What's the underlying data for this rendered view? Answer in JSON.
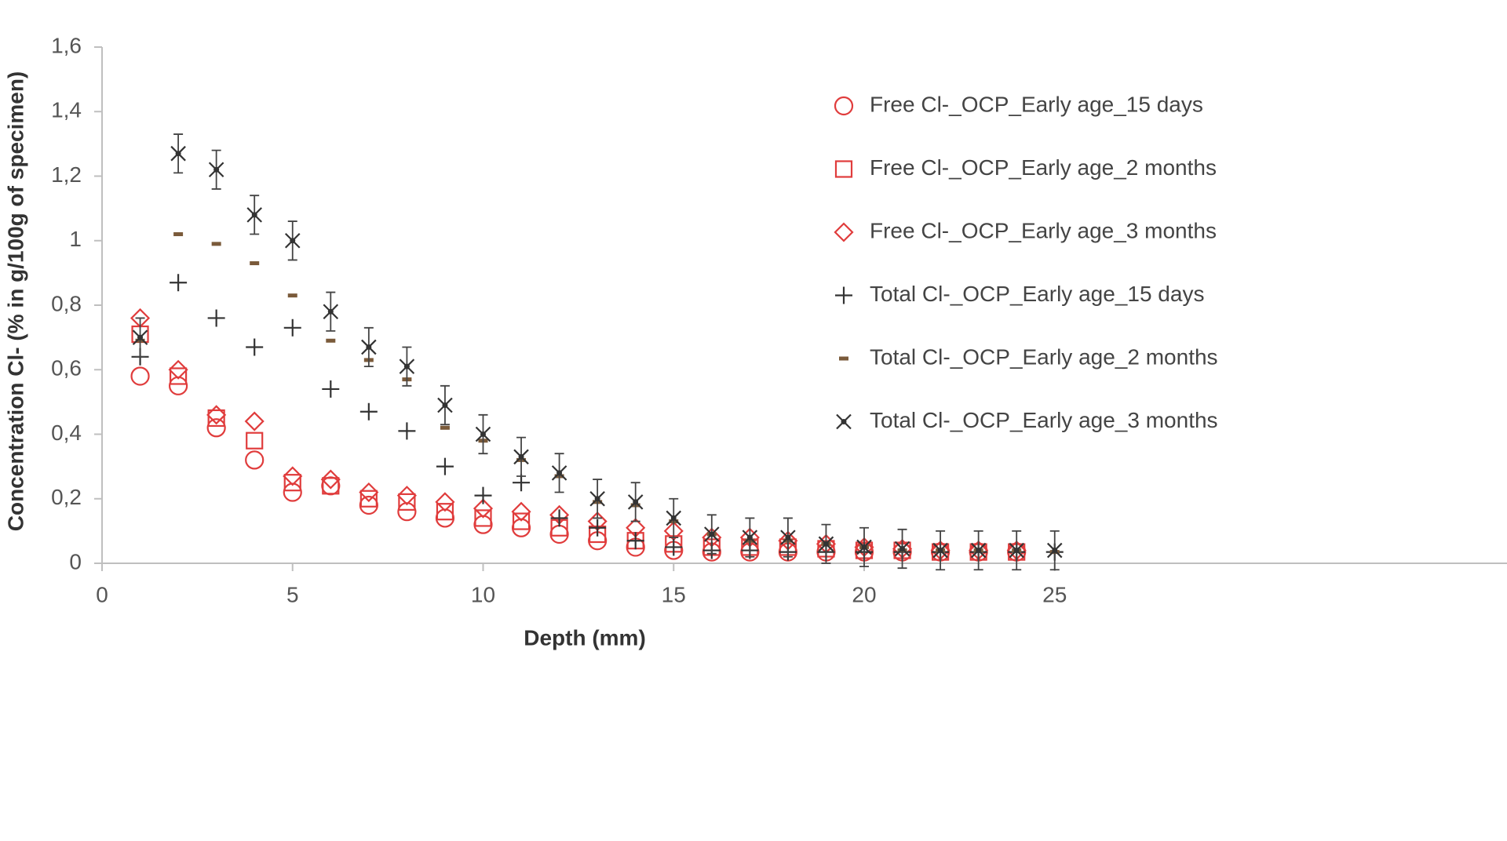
{
  "chart_data": {
    "type": "scatter",
    "title": "",
    "xlabel": "Depth (mm)",
    "ylabel": "Concentration Cl- (% in g/100g of specimen)",
    "xlim": [
      0,
      30
    ],
    "ylim": [
      0,
      1.6
    ],
    "x_ticks": [
      "0",
      "5",
      "10",
      "15",
      "20",
      "25"
    ],
    "y_ticks": [
      "0",
      "0,2",
      "0,4",
      "0,6",
      "0,8",
      "1",
      "1,2",
      "1,4",
      "1,6"
    ],
    "grid": false,
    "legend_position": "right",
    "series": [
      {
        "name": "Free Cl-_OCP_Early age_15 days",
        "marker": "circle",
        "color": "#e03c3c",
        "points": [
          [
            1,
            0.58
          ],
          [
            2,
            0.55
          ],
          [
            3,
            0.42
          ],
          [
            4,
            0.32
          ],
          [
            5,
            0.22
          ],
          [
            6,
            0.24
          ],
          [
            7,
            0.18
          ],
          [
            8,
            0.16
          ],
          [
            9,
            0.14
          ],
          [
            10,
            0.12
          ],
          [
            11,
            0.11
          ],
          [
            12,
            0.09
          ],
          [
            13,
            0.07
          ],
          [
            14,
            0.05
          ],
          [
            15,
            0.04
          ],
          [
            16,
            0.035
          ],
          [
            17,
            0.035
          ],
          [
            18,
            0.035
          ],
          [
            19,
            0.035
          ],
          [
            20,
            0.035
          ],
          [
            21,
            0.035
          ],
          [
            22,
            0.035
          ],
          [
            23,
            0.035
          ],
          [
            24,
            0.035
          ]
        ]
      },
      {
        "name": "Free Cl-_OCP_Early age_2 months",
        "marker": "square",
        "color": "#e03c3c",
        "points": [
          [
            1,
            0.71
          ],
          [
            2,
            0.58
          ],
          [
            3,
            0.45
          ],
          [
            4,
            0.38
          ],
          [
            5,
            0.25
          ],
          [
            6,
            0.24
          ],
          [
            7,
            0.2
          ],
          [
            8,
            0.19
          ],
          [
            9,
            0.16
          ],
          [
            10,
            0.14
          ],
          [
            11,
            0.13
          ],
          [
            12,
            0.11
          ],
          [
            13,
            0.09
          ],
          [
            14,
            0.07
          ],
          [
            15,
            0.06
          ],
          [
            16,
            0.05
          ],
          [
            17,
            0.05
          ],
          [
            18,
            0.05
          ],
          [
            19,
            0.045
          ],
          [
            20,
            0.04
          ],
          [
            21,
            0.04
          ],
          [
            22,
            0.035
          ],
          [
            23,
            0.035
          ],
          [
            24,
            0.035
          ]
        ]
      },
      {
        "name": "Free Cl-_OCP_Early age_3 months",
        "marker": "diamond",
        "color": "#e03c3c",
        "points": [
          [
            1,
            0.76
          ],
          [
            2,
            0.6
          ],
          [
            3,
            0.46
          ],
          [
            4,
            0.44
          ],
          [
            5,
            0.27
          ],
          [
            6,
            0.26
          ],
          [
            7,
            0.22
          ],
          [
            8,
            0.21
          ],
          [
            9,
            0.19
          ],
          [
            10,
            0.17
          ],
          [
            11,
            0.16
          ],
          [
            12,
            0.15
          ],
          [
            13,
            0.13
          ],
          [
            14,
            0.11
          ],
          [
            15,
            0.1
          ],
          [
            16,
            0.08
          ],
          [
            17,
            0.08
          ],
          [
            18,
            0.07
          ],
          [
            19,
            0.06
          ],
          [
            20,
            0.05
          ],
          [
            21,
            0.045
          ],
          [
            22,
            0.04
          ],
          [
            23,
            0.04
          ],
          [
            24,
            0.04
          ]
        ]
      },
      {
        "name": "Total Cl-_OCP_Early age_15 days",
        "marker": "plus",
        "color": "#333333",
        "points": [
          [
            1,
            0.64
          ],
          [
            2,
            0.87
          ],
          [
            3,
            0.76
          ],
          [
            4,
            0.67
          ],
          [
            5,
            0.73
          ],
          [
            6,
            0.54
          ],
          [
            7,
            0.47
          ],
          [
            8,
            0.41
          ],
          [
            9,
            0.3
          ],
          [
            10,
            0.21
          ],
          [
            11,
            0.25
          ],
          [
            12,
            0.14
          ],
          [
            13,
            0.11
          ],
          [
            14,
            0.07
          ],
          [
            15,
            0.05
          ],
          [
            16,
            0.04
          ],
          [
            17,
            0.04
          ],
          [
            18,
            0.035
          ],
          [
            19,
            0.035
          ],
          [
            20,
            0.035
          ],
          [
            21,
            0.035
          ],
          [
            22,
            0.035
          ],
          [
            23,
            0.035
          ],
          [
            24,
            0.035
          ],
          [
            25,
            0.035
          ]
        ]
      },
      {
        "name": "Total Cl-_OCP_Early age_2 months",
        "marker": "dash",
        "color": "#7a5a3a",
        "points": [
          [
            1,
            0.69
          ],
          [
            2,
            1.02
          ],
          [
            3,
            0.99
          ],
          [
            4,
            0.93
          ],
          [
            5,
            0.83
          ],
          [
            6,
            0.69
          ],
          [
            7,
            0.63
          ],
          [
            8,
            0.57
          ],
          [
            9,
            0.42
          ],
          [
            10,
            0.38
          ],
          [
            11,
            0.32
          ],
          [
            12,
            0.27
          ],
          [
            13,
            0.19
          ],
          [
            14,
            0.18
          ],
          [
            15,
            0.13
          ],
          [
            16,
            0.09
          ],
          [
            17,
            0.07
          ],
          [
            18,
            0.07
          ],
          [
            19,
            0.06
          ],
          [
            20,
            0.05
          ],
          [
            21,
            0.04
          ],
          [
            22,
            0.04
          ],
          [
            23,
            0.04
          ],
          [
            24,
            0.04
          ],
          [
            25,
            0.035
          ]
        ]
      },
      {
        "name": "Total Cl-_OCP_Early age_3 months",
        "marker": "cross",
        "color": "#333333",
        "error": 0.06,
        "points": [
          [
            1,
            0.7
          ],
          [
            2,
            1.27
          ],
          [
            3,
            1.22
          ],
          [
            4,
            1.08
          ],
          [
            5,
            1.0
          ],
          [
            6,
            0.78
          ],
          [
            7,
            0.67
          ],
          [
            8,
            0.61
          ],
          [
            9,
            0.49
          ],
          [
            10,
            0.4
          ],
          [
            11,
            0.33
          ],
          [
            12,
            0.28
          ],
          [
            13,
            0.2
          ],
          [
            14,
            0.19
          ],
          [
            15,
            0.14
          ],
          [
            16,
            0.09
          ],
          [
            17,
            0.08
          ],
          [
            18,
            0.08
          ],
          [
            19,
            0.06
          ],
          [
            20,
            0.05
          ],
          [
            21,
            0.045
          ],
          [
            22,
            0.04
          ],
          [
            23,
            0.04
          ],
          [
            24,
            0.04
          ],
          [
            25,
            0.04
          ]
        ]
      }
    ]
  }
}
